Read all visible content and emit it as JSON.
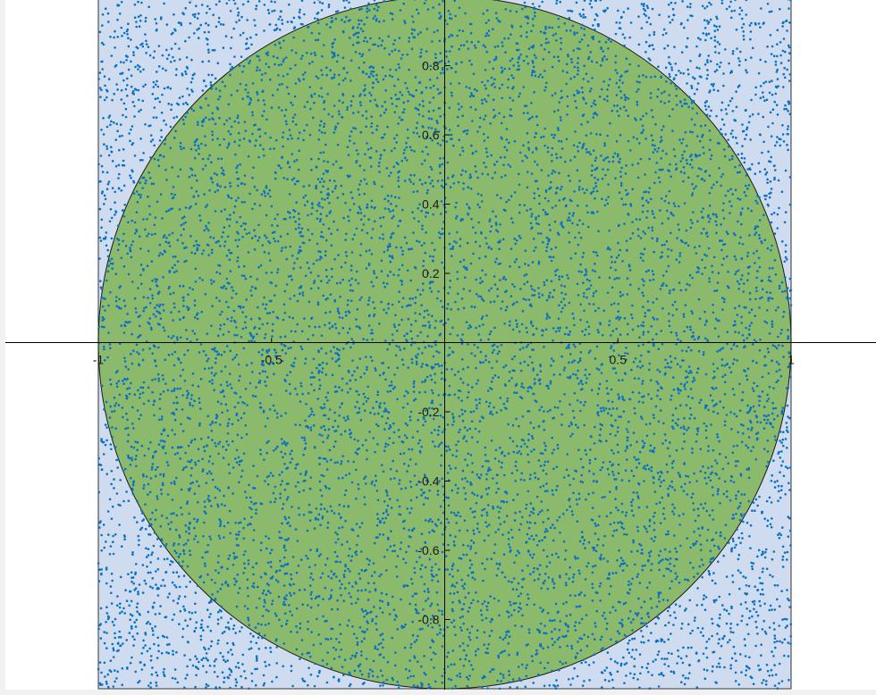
{
  "chart_data": {
    "type": "scatter",
    "description_free": true,
    "x_range": [
      -1,
      1
    ],
    "y_range": [
      -1,
      1
    ],
    "square_fill": "#cfdcf0",
    "circle_fill": "#8cba6c",
    "circle_stroke": "#1a1a1a",
    "point_color": "#0a71c2",
    "axis_color": "#000000",
    "point_count": 9000,
    "random_seed": 31337,
    "x_ticks": [
      {
        "value": -1,
        "label": "-1"
      },
      {
        "value": -0.5,
        "label": "-0.5"
      },
      {
        "value": 0.5,
        "label": "0.5"
      },
      {
        "value": 1,
        "label": "1"
      }
    ],
    "y_ticks": [
      {
        "value": 0.8,
        "label": "0.8"
      },
      {
        "value": 0.6,
        "label": "0.6"
      },
      {
        "value": 0.4,
        "label": "0.4"
      },
      {
        "value": 0.2,
        "label": "0.2"
      },
      {
        "value": -0.2,
        "label": "-0.2"
      },
      {
        "value": -0.4,
        "label": "-0.4"
      },
      {
        "value": -0.6,
        "label": "-0.6"
      },
      {
        "value": -0.8,
        "label": "-0.8"
      }
    ],
    "regions": [
      {
        "shape": "square",
        "x": [
          -1,
          1
        ],
        "y": [
          -1,
          1
        ]
      },
      {
        "shape": "circle",
        "center": [
          0,
          0
        ],
        "radius": 1
      }
    ]
  }
}
